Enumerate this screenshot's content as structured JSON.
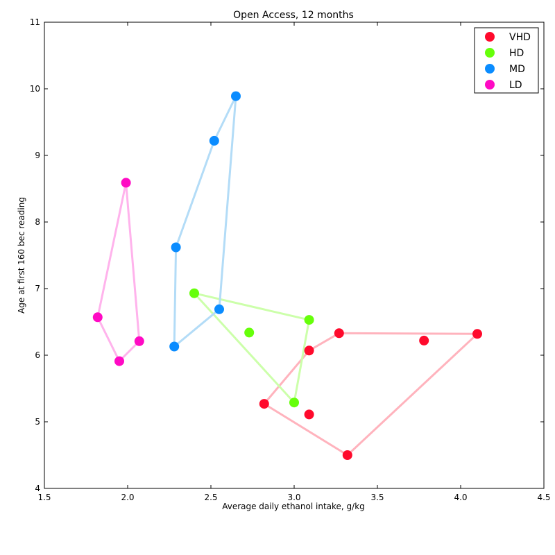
{
  "chart_data": {
    "type": "scatter",
    "title": "Open Access, 12 months",
    "xlabel": "Average daily ethanol intake, g/kg",
    "ylabel": "Age at first 160 bec reading",
    "xlim": [
      1.5,
      4.5
    ],
    "ylim": [
      4,
      11
    ],
    "xticks": [
      "1.5",
      "2.0",
      "2.5",
      "3.0",
      "3.5",
      "4.0",
      "4.5"
    ],
    "yticks": [
      "4",
      "5",
      "6",
      "7",
      "8",
      "9",
      "10",
      "11"
    ],
    "grid": false,
    "legend_position": "top-right",
    "series": [
      {
        "name": "VHD",
        "color": "#ff0a2c",
        "line_color": "#ffb3bd",
        "points": [
          [
            2.82,
            5.27
          ],
          [
            3.09,
            6.07
          ],
          [
            3.27,
            6.33
          ],
          [
            4.1,
            6.32
          ],
          [
            3.32,
            4.5
          ],
          [
            3.78,
            6.22
          ],
          [
            3.09,
            5.11
          ]
        ],
        "polygon": [
          0,
          1,
          2,
          3,
          4,
          0
        ]
      },
      {
        "name": "HD",
        "color": "#66ff0a",
        "line_color": "#ccffaa",
        "points": [
          [
            2.4,
            6.93
          ],
          [
            3.09,
            6.53
          ],
          [
            3.0,
            5.29
          ],
          [
            2.73,
            6.34
          ]
        ],
        "polygon": [
          0,
          1,
          2,
          0
        ]
      },
      {
        "name": "MD",
        "color": "#0a8cff",
        "line_color": "#b3dcf7",
        "points": [
          [
            2.28,
            6.13
          ],
          [
            2.55,
            6.69
          ],
          [
            2.65,
            9.89
          ],
          [
            2.52,
            9.22
          ],
          [
            2.29,
            7.62
          ]
        ],
        "polygon": [
          0,
          1,
          2,
          3,
          4,
          0
        ]
      },
      {
        "name": "LD",
        "color": "#ff0ac4",
        "line_color": "#ffb3ec",
        "points": [
          [
            1.82,
            6.57
          ],
          [
            1.99,
            8.59
          ],
          [
            2.07,
            6.21
          ],
          [
            1.95,
            5.91
          ]
        ],
        "polygon": [
          0,
          1,
          2,
          3,
          0
        ]
      }
    ]
  }
}
